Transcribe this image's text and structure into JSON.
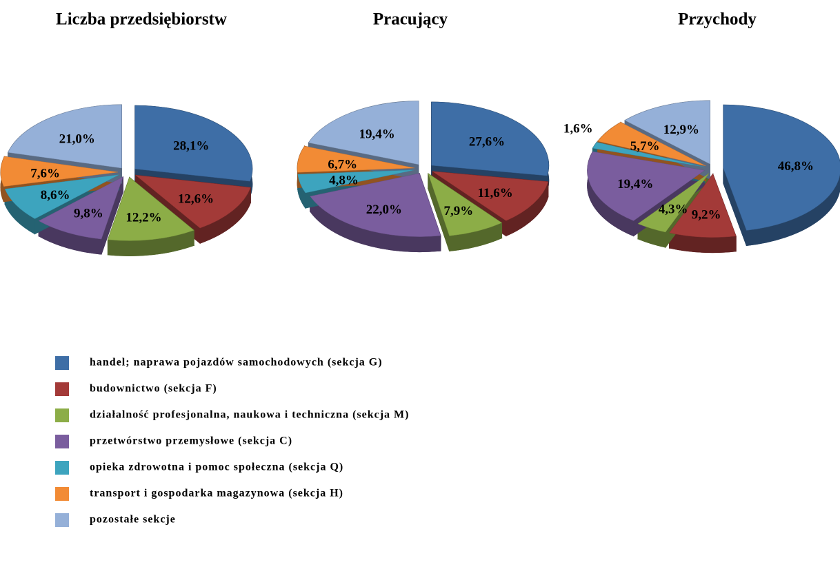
{
  "chart_data": [
    {
      "type": "pie",
      "title": "Liczba przedsiębiorstw",
      "values": [
        28.1,
        12.6,
        12.2,
        9.8,
        8.6,
        7.6,
        21.0
      ],
      "value_labels": [
        "28,1%",
        "12,6%",
        "12,2%",
        "9,8%",
        "8,6%",
        "7,6%",
        "21,0%"
      ]
    },
    {
      "type": "pie",
      "title": "Pracujący",
      "values": [
        27.6,
        11.6,
        7.9,
        22.0,
        4.8,
        6.7,
        19.4
      ],
      "value_labels": [
        "27,6%",
        "11,6%",
        "7,9%",
        "22,0%",
        "4,8%",
        "6,7%",
        "19,4%"
      ]
    },
    {
      "type": "pie",
      "title": "Przychody",
      "values": [
        46.8,
        9.2,
        4.3,
        19.4,
        1.6,
        5.7,
        12.9
      ],
      "value_labels": [
        "46,8%",
        "9,2%",
        "4,3%",
        "19,4%",
        "1,6%",
        "5,7%",
        "12,9%"
      ]
    }
  ],
  "legend": {
    "categories": [
      "handel; naprawa pojazdów samochodowych (sekcja G)",
      "budownictwo (sekcja F)",
      "działalność profesjonalna, naukowa i techniczna (sekcja M)",
      "przetwórstwo przemysłowe (sekcja C)",
      "opieka zdrowotna i pomoc społeczna (sekcja Q)",
      "transport i gospodarka magazynowa (sekcja H)",
      "pozostałe sekcje"
    ],
    "colors": [
      "#3e6ea6",
      "#a33a38",
      "#8cad47",
      "#7a5d9e",
      "#3da4be",
      "#f28b35",
      "#95b0d8"
    ]
  }
}
